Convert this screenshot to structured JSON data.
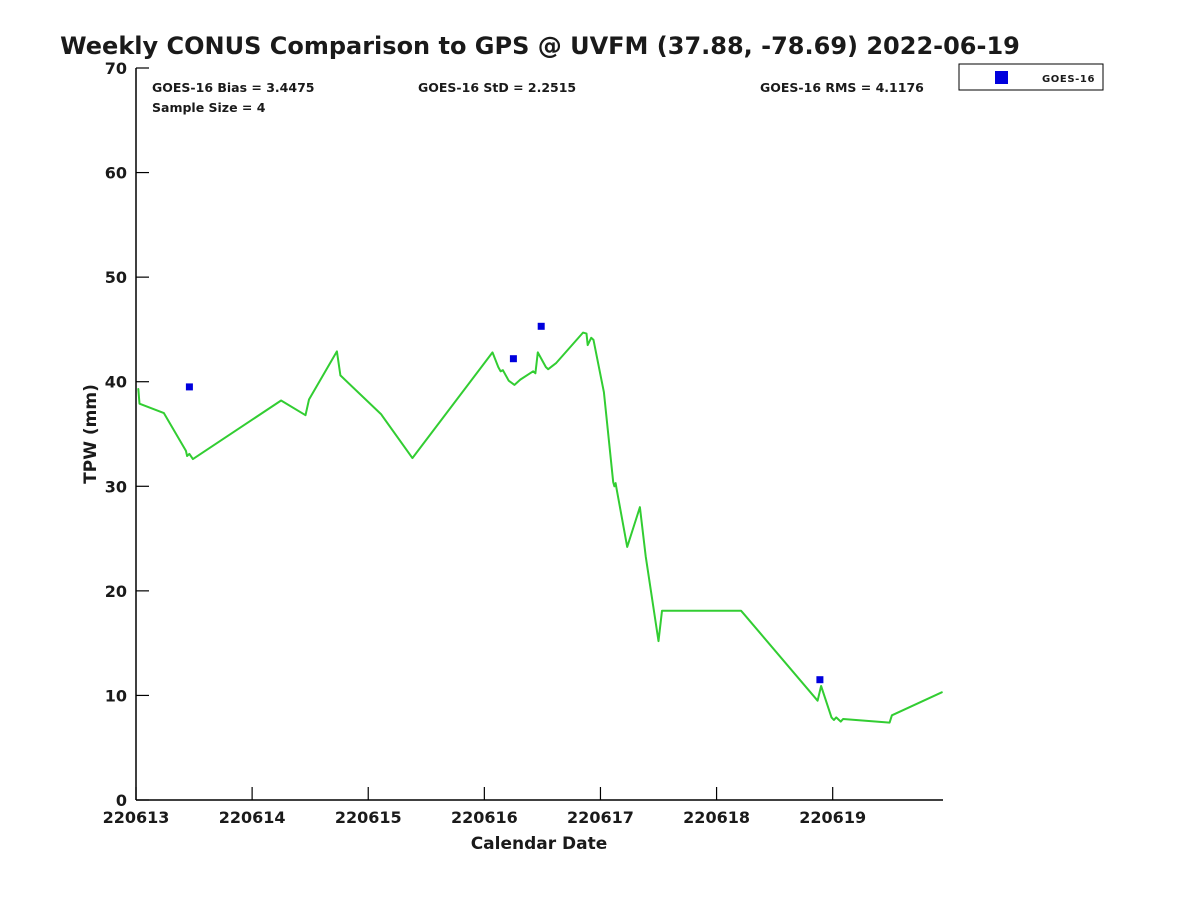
{
  "figure": {
    "title": "Weekly CONUS Comparison to GPS @ UVFM (37.88, -78.69) 2022-06-19",
    "stats": {
      "bias": "GOES-16 Bias = 3.4475",
      "std": "GOES-16 StD = 2.2515",
      "rms": "GOES-16 RMS = 4.1176",
      "sample_size": "Sample Size = 4"
    },
    "legend": {
      "items": [
        {
          "label": "GOES-16",
          "marker": "square",
          "color": "#0000dd"
        }
      ]
    }
  },
  "chart_data": {
    "type": "line",
    "title": "Weekly CONUS Comparison to GPS @ UVFM (37.88, -78.69) 2022-06-19",
    "xlabel": "Calendar Date",
    "ylabel": "TPW (mm)",
    "xlim": [
      220613,
      220619.95
    ],
    "ylim": [
      0,
      70
    ],
    "x_ticks": [
      220613,
      220614,
      220615,
      220616,
      220617,
      220618,
      220619
    ],
    "y_ticks": [
      0,
      10,
      20,
      30,
      40,
      50,
      60,
      70
    ],
    "grid": false,
    "legend_position": "top-right-outside",
    "colors": {
      "gps_line": "#32cd32",
      "goes16_marker": "#0000dd"
    },
    "series": [
      {
        "name": "GPS",
        "type": "line",
        "color": "#32cd32",
        "points": [
          [
            220613.02,
            39.3
          ],
          [
            220613.03,
            37.9
          ],
          [
            220613.24,
            37.0
          ],
          [
            220613.43,
            33.4
          ],
          [
            220613.44,
            32.9
          ],
          [
            220613.46,
            33.1
          ],
          [
            220613.49,
            32.6
          ],
          [
            220614.25,
            38.2
          ],
          [
            220614.46,
            36.8
          ],
          [
            220614.49,
            38.3
          ],
          [
            220614.73,
            42.9
          ],
          [
            220614.76,
            40.6
          ],
          [
            220615.11,
            36.9
          ],
          [
            220615.38,
            32.7
          ],
          [
            220616.07,
            42.8
          ],
          [
            220616.12,
            41.4
          ],
          [
            220616.14,
            41.0
          ],
          [
            220616.16,
            41.1
          ],
          [
            220616.21,
            40.1
          ],
          [
            220616.26,
            39.7
          ],
          [
            220616.31,
            40.2
          ],
          [
            220616.42,
            41.0
          ],
          [
            220616.44,
            40.8
          ],
          [
            220616.46,
            42.8
          ],
          [
            220616.53,
            41.4
          ],
          [
            220616.55,
            41.2
          ],
          [
            220616.62,
            41.8
          ],
          [
            220616.85,
            44.7
          ],
          [
            220616.88,
            44.6
          ],
          [
            220616.89,
            43.5
          ],
          [
            220616.92,
            44.2
          ],
          [
            220616.94,
            44.0
          ],
          [
            220617.03,
            39.0
          ],
          [
            220617.11,
            30.4
          ],
          [
            220617.12,
            30.0
          ],
          [
            220617.13,
            30.3
          ],
          [
            220617.14,
            29.7
          ],
          [
            220617.23,
            24.2
          ],
          [
            220617.34,
            28.0
          ],
          [
            220617.39,
            23.3
          ],
          [
            220617.5,
            15.2
          ],
          [
            220617.53,
            18.1
          ],
          [
            220618.21,
            18.1
          ],
          [
            220618.23,
            17.85
          ],
          [
            220618.87,
            9.5
          ],
          [
            220618.9,
            10.9
          ],
          [
            220618.99,
            7.9
          ],
          [
            220619.01,
            7.65
          ],
          [
            220619.03,
            7.9
          ],
          [
            220619.07,
            7.5
          ],
          [
            220619.09,
            7.75
          ],
          [
            220619.49,
            7.4
          ],
          [
            220619.51,
            8.1
          ],
          [
            220619.94,
            10.3
          ]
        ]
      },
      {
        "name": "GOES-16",
        "type": "scatter",
        "marker": "square",
        "color": "#0000dd",
        "points": [
          [
            220613.46,
            39.5
          ],
          [
            220616.25,
            42.2
          ],
          [
            220616.49,
            45.3
          ],
          [
            220618.89,
            11.5
          ]
        ]
      }
    ]
  }
}
